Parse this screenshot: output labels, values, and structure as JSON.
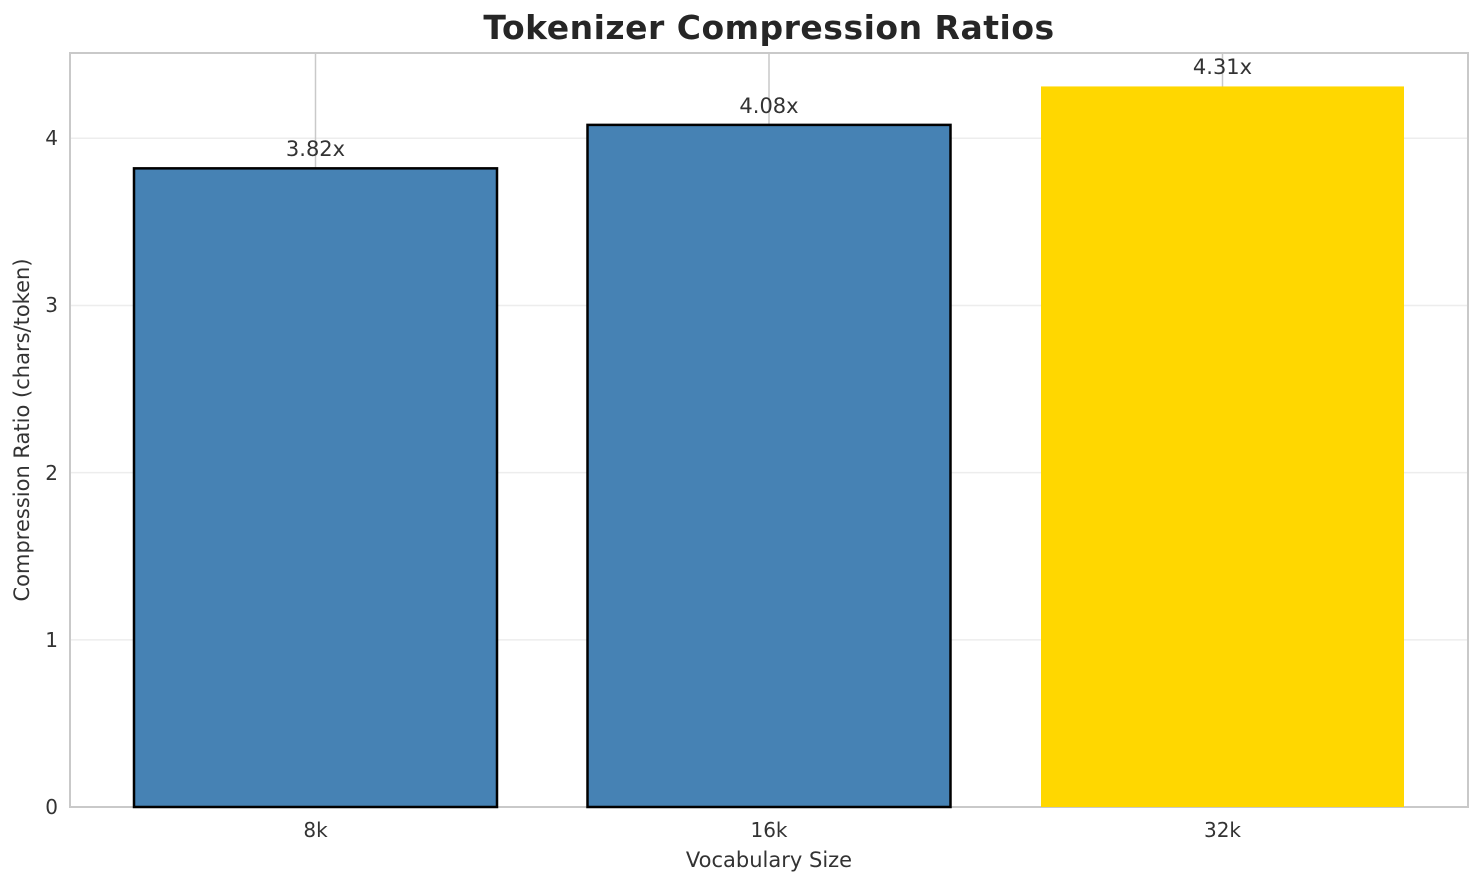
{
  "chart_data": {
    "type": "bar",
    "title": "Tokenizer Compression Ratios",
    "xlabel": "Vocabulary Size",
    "ylabel": "Compression Ratio (chars/token)",
    "categories": [
      "8k",
      "16k",
      "32k"
    ],
    "values": [
      3.82,
      4.08,
      4.31
    ],
    "bar_labels": [
      "3.82x",
      "4.08x",
      "4.31x"
    ],
    "bar_colors": [
      "#4682B4",
      "#4682B4",
      "#FFD700"
    ],
    "bar_edge_colors": [
      "#000000",
      "#000000",
      "none"
    ],
    "yticks": [
      0,
      1,
      2,
      3,
      4
    ],
    "ylim": [
      0,
      4.51
    ],
    "grid": true,
    "legend": "none",
    "highlight_index": 2,
    "colors": {
      "background": "#ffffff",
      "spine": "#c9c9c9",
      "grid_horizontal": "#ededed",
      "grid_vertical": "#c9c9c9",
      "text": "#333333",
      "title_text": "#262626",
      "bar_blue": "#4682B4",
      "bar_gold": "#FFD700"
    }
  }
}
